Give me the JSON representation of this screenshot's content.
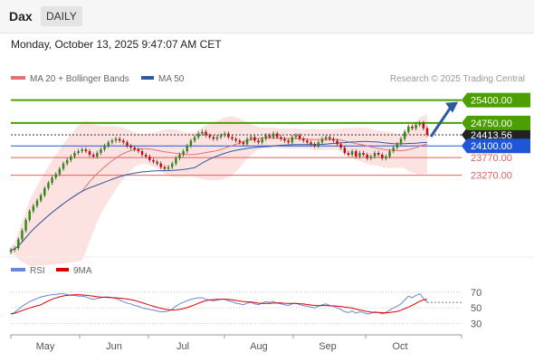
{
  "header": {
    "symbol": "Dax",
    "timeframe": "DAILY",
    "timestamp": "Monday, October 13, 2025 9:47:07 AM CET"
  },
  "legend": {
    "ma20_bb": "MA 20 + Bollinger Bands",
    "ma50": "MA 50",
    "credit": "Research © 2025 Trading Central",
    "rsi": "RSI",
    "rsi9": "9MA"
  },
  "colors": {
    "bb_fill": "#fde2e2",
    "ma20": "#e07272",
    "ma50": "#2f5a9e",
    "green_level": "#4ba000",
    "blue_level": "#1f56d8",
    "red_level": "#e06060",
    "rsi": "#6b86d6",
    "rsi9": "#d80000"
  },
  "chart_data": [
    {
      "type": "candlestick",
      "x_labels": [
        "May",
        "Jun",
        "Jul",
        "Aug",
        "Sep",
        "Oct"
      ],
      "ylim": [
        21000,
        25800
      ],
      "levels": [
        {
          "value": 25400.0,
          "label": "25400.00",
          "kind": "resistance"
        },
        {
          "value": 24750.0,
          "label": "24750.00",
          "kind": "resistance"
        },
        {
          "value": 24413.56,
          "label": "24413.56",
          "kind": "last"
        },
        {
          "value": 24100.0,
          "label": "24100.00",
          "kind": "pivot"
        },
        {
          "value": 23770.0,
          "label": "23770.00",
          "kind": "support"
        },
        {
          "value": 23270.0,
          "label": "23270.00",
          "kind": "support"
        }
      ],
      "series": [
        {
          "name": "Dax",
          "close": [
            21150,
            21200,
            21450,
            21700,
            22000,
            22250,
            22400,
            22550,
            22700,
            22900,
            23050,
            23200,
            23300,
            23450,
            23600,
            23700,
            23800,
            23900,
            23950,
            24000,
            23950,
            23850,
            23800,
            23900,
            24000,
            24100,
            24200,
            24250,
            24300,
            24250,
            24200,
            24100,
            24050,
            24000,
            23950,
            23850,
            23800,
            23700,
            23650,
            23600,
            23500,
            23450,
            23500,
            23600,
            23750,
            23850,
            23950,
            24100,
            24250,
            24350,
            24450,
            24500,
            24400,
            24350,
            24300,
            24350,
            24400,
            24450,
            24350,
            24300,
            24250,
            24200,
            24150,
            24300,
            24350,
            24250,
            24200,
            24300,
            24400,
            24350,
            24450,
            24350,
            24300,
            24250,
            24200,
            24350,
            24400,
            24300,
            24250,
            24200,
            24150,
            24100,
            24200,
            24300,
            24350,
            24300,
            24250,
            24150,
            24050,
            23900,
            23850,
            23950,
            23800,
            23900,
            23850,
            23750,
            23800,
            23900,
            23850,
            23750,
            23800,
            23950,
            24050,
            24150,
            24300,
            24500,
            24650,
            24600,
            24700,
            24750,
            24600,
            24413.56
          ]
        },
        {
          "name": "MA 20 + Bollinger Bands",
          "indicator": "sma",
          "period": 20
        },
        {
          "name": "MA 50",
          "indicator": "sma",
          "period": 50
        }
      ]
    },
    {
      "type": "line",
      "ylim": [
        20,
        85
      ],
      "y_ticks": [
        "70",
        "50",
        "30"
      ],
      "series": [
        {
          "name": "RSI",
          "values": [
            42,
            44,
            48,
            52,
            55,
            58,
            60,
            62,
            64,
            65,
            66,
            67,
            67,
            68,
            68,
            67,
            66,
            66,
            65,
            65,
            64,
            62,
            61,
            62,
            63,
            64,
            64,
            63,
            62,
            60,
            58,
            56,
            55,
            53,
            52,
            50,
            49,
            48,
            47,
            46,
            45,
            45,
            46,
            48,
            52,
            55,
            57,
            59,
            61,
            62,
            63,
            63,
            61,
            60,
            59,
            60,
            61,
            61,
            59,
            58,
            56,
            55,
            54,
            56,
            57,
            55,
            54,
            56,
            58,
            57,
            58,
            56,
            55,
            54,
            53,
            55,
            56,
            54,
            53,
            52,
            51,
            50,
            52,
            54,
            55,
            53,
            52,
            50,
            48,
            45,
            44,
            46,
            43,
            45,
            44,
            42,
            43,
            45,
            44,
            42,
            44,
            47,
            50,
            52,
            55,
            60,
            65,
            63,
            66,
            68,
            62,
            57
          ]
        },
        {
          "name": "9MA",
          "indicator": "sma",
          "period": 9
        }
      ]
    }
  ]
}
